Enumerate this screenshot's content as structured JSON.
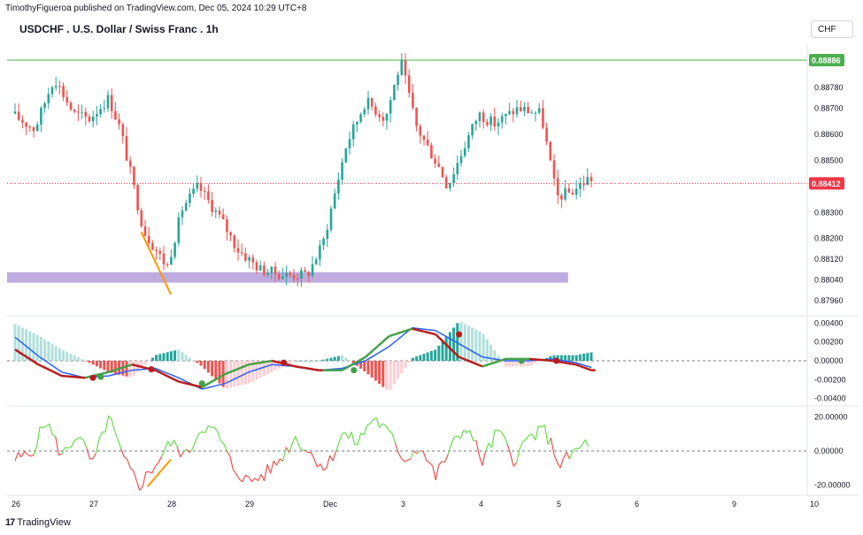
{
  "header": {
    "publisher": "TimothyFigueroa published on TradingView.com, Dec 05, 2024 10:29 UTC+8",
    "title": "USDCHF . U.S. Dollar / Swiss Franc . 1h",
    "currency_button": "CHF"
  },
  "footer": {
    "brand": "TradingView",
    "mark": "17"
  },
  "colors": {
    "up": "#26a69a",
    "down": "#ef5350",
    "zone": "#b39ddb",
    "resistance": "#4caf50",
    "current_price": "#f23645",
    "trendline": "#ff9800",
    "macd_line": "#2962ff",
    "signal_up": "#43a047",
    "signal_down": "#b71c1c",
    "rsi_up": "#66dd4a",
    "rsi_down": "#f0504f"
  },
  "chart_data": [
    {
      "type": "candlestick",
      "symbol": "USDCHF",
      "timeframe": "1h",
      "x_labels": [
        "26",
        "27",
        "28",
        "29",
        "Dec",
        "3",
        "4",
        "5",
        "6",
        "9",
        "10"
      ],
      "y_ticks": [
        "0.88880",
        "0.88780",
        "0.88700",
        "0.88600",
        "0.88500",
        "0.88300",
        "0.88200",
        "0.88120",
        "0.88040",
        "0.87960"
      ],
      "ylim": [
        0.8792,
        0.8893
      ],
      "resistance_level": 0.88886,
      "resistance_label": "0.88886",
      "current_price": 0.88412,
      "current_price_label": "0.88412",
      "support_zone": [
        0.8803,
        0.8807
      ],
      "close_path_x_days": [
        0,
        0.3,
        0.55,
        0.8,
        1.0,
        1.25,
        1.4,
        1.7,
        2.0,
        2.2,
        2.4,
        2.7,
        2.9,
        3.2,
        3.5,
        3.8,
        4.0,
        4.3,
        4.55,
        4.8,
        5.0,
        5.2,
        5.5,
        5.6,
        5.85,
        6.0,
        6.2,
        6.5,
        6.8,
        7.0,
        7.2,
        7.4
      ],
      "close_path_y": [
        0.8868,
        0.8862,
        0.8882,
        0.8868,
        0.8866,
        0.8874,
        0.8862,
        0.8823,
        0.8809,
        0.8832,
        0.884,
        0.8827,
        0.8816,
        0.8808,
        0.8806,
        0.8806,
        0.8818,
        0.8856,
        0.8873,
        0.8866,
        0.8888,
        0.8863,
        0.8847,
        0.884,
        0.8858,
        0.8868,
        0.8864,
        0.887,
        0.8868,
        0.8836,
        0.8838,
        0.8843
      ]
    },
    {
      "type": "macd",
      "y_ticks": [
        "0.00400",
        "0.00200",
        "0.00000",
        "-0.00200",
        "-0.00400"
      ],
      "ylim": [
        -0.0045,
        0.0045
      ],
      "x_days": [
        0,
        0.3,
        0.6,
        0.9,
        1.2,
        1.5,
        1.8,
        2.1,
        2.4,
        2.7,
        3.0,
        3.3,
        3.6,
        3.9,
        4.2,
        4.5,
        4.8,
        5.1,
        5.4,
        5.7,
        6.0,
        6.3,
        6.6,
        6.9,
        7.2,
        7.4
      ],
      "macd": [
        0.0025,
        0.0005,
        -0.0012,
        -0.0018,
        -0.0016,
        -0.001,
        -0.0008,
        -0.0018,
        -0.003,
        -0.0024,
        -0.0012,
        -0.0004,
        -0.0006,
        -0.001,
        -0.0008,
        0.0,
        0.0015,
        0.0035,
        0.0032,
        0.0018,
        0.0004,
        0.0,
        0.0,
        0.0002,
        -0.0002,
        -0.0007
      ],
      "signal": [
        0.0012,
        -0.0004,
        -0.0016,
        -0.0018,
        -0.0012,
        -0.0004,
        -0.001,
        -0.0022,
        -0.0028,
        -0.0014,
        -0.0004,
        0.0,
        -0.0006,
        -0.001,
        -0.001,
        0.0004,
        0.0026,
        0.0034,
        0.0028,
        0.0004,
        -0.0006,
        0.0002,
        0.0002,
        0.0,
        -0.0004,
        -0.001
      ]
    },
    {
      "type": "rsi",
      "y_ticks": [
        "20.00000",
        "0.00000",
        "-20.00000"
      ],
      "ylim": [
        -25,
        25
      ],
      "x_days": [
        0,
        0.2,
        0.4,
        0.6,
        0.8,
        1.0,
        1.2,
        1.4,
        1.6,
        1.8,
        2.0,
        2.2,
        2.4,
        2.6,
        2.8,
        3.0,
        3.2,
        3.4,
        3.6,
        3.8,
        4.0,
        4.2,
        4.4,
        4.6,
        4.8,
        5.0,
        5.2,
        5.4,
        5.6,
        5.8,
        6.0,
        6.2,
        6.4,
        6.6,
        6.8,
        7.0,
        7.2,
        7.4
      ],
      "values": [
        -5,
        -2,
        18,
        -3,
        10,
        -8,
        20,
        -6,
        -20,
        -8,
        5,
        -3,
        15,
        10,
        -10,
        -18,
        -14,
        -5,
        8,
        -2,
        -10,
        10,
        5,
        20,
        10,
        -5,
        3,
        -15,
        2,
        15,
        -6,
        12,
        -5,
        8,
        12,
        -8,
        0,
        7
      ]
    }
  ]
}
